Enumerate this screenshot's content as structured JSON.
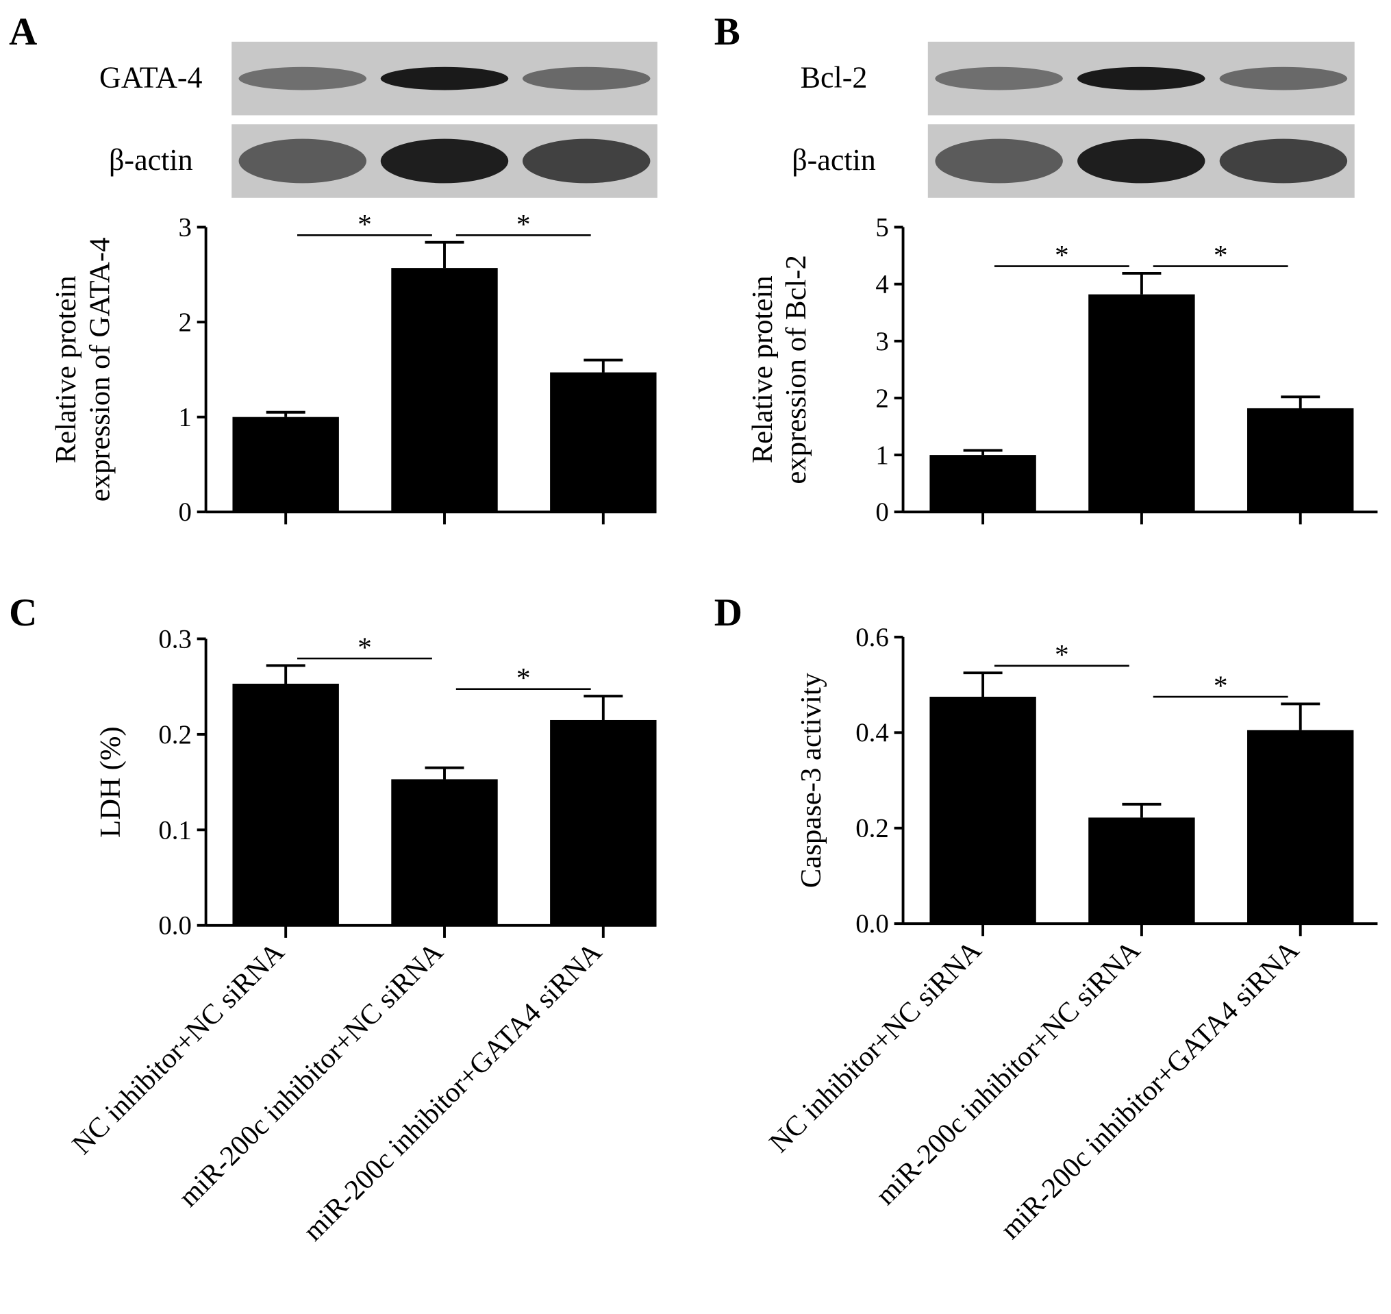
{
  "chart_data": [
    {
      "type": "bar",
      "panel": "A",
      "ylabel": [
        "Relative protein",
        "expression of GATA-4"
      ],
      "blots": [
        "GATA-4",
        "β-actin"
      ],
      "categories": [
        null,
        null,
        null
      ],
      "values": [
        1.0,
        2.57,
        1.47
      ],
      "errors": [
        0.05,
        0.27,
        0.13
      ],
      "color": "#000000",
      "ylim": [
        0,
        3
      ],
      "yticks": [
        0,
        1,
        2,
        3
      ],
      "annotations": [
        "*",
        "*"
      ]
    },
    {
      "type": "bar",
      "panel": "B",
      "ylabel": [
        "Relative protein",
        "expression of Bcl-2"
      ],
      "blots": [
        "Bcl-2",
        "β-actin"
      ],
      "categories": [
        null,
        null,
        null
      ],
      "values": [
        1.0,
        3.82,
        1.82
      ],
      "errors": [
        0.08,
        0.37,
        0.2
      ],
      "color": "#000000",
      "ylim": [
        0,
        5
      ],
      "yticks": [
        0,
        1,
        2,
        3,
        4,
        5
      ],
      "annotations": [
        "*",
        "*"
      ]
    },
    {
      "type": "bar",
      "panel": "C",
      "ylabel": [
        "LDH (%)"
      ],
      "categories": [
        "NC inhibitor+NC siRNA",
        "miR-200c inhibitor+NC siRNA",
        "miR-200c inhibitor+GATA4 siRNA"
      ],
      "values": [
        0.253,
        0.153,
        0.215
      ],
      "errors": [
        0.019,
        0.012,
        0.025
      ],
      "color": "#000000",
      "ylim": [
        0,
        0.3
      ],
      "yticks": [
        {
          "value": 0,
          "label": "0.0"
        },
        0.1,
        0.2,
        0.3
      ],
      "annotations": [
        "*",
        "*"
      ]
    },
    {
      "type": "bar",
      "panel": "D",
      "ylabel": [
        "Caspase-3 activity"
      ],
      "categories": [
        "NC inhibitor+NC siRNA",
        "miR-200c inhibitor+NC siRNA",
        "miR-200c inhibitor+GATA4 siRNA"
      ],
      "values": [
        0.475,
        0.222,
        0.405
      ],
      "errors": [
        0.05,
        0.028,
        0.055
      ],
      "color": "#000000",
      "ylim": [
        0,
        0.6
      ],
      "yticks": [
        {
          "value": 0,
          "label": "0.0"
        },
        0.2,
        0.4,
        0.6
      ],
      "annotations": [
        "*",
        "*"
      ]
    }
  ]
}
